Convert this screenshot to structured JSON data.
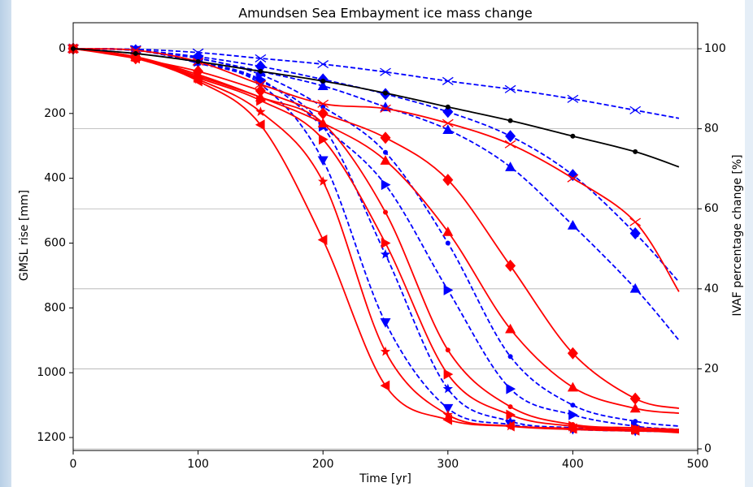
{
  "chart_data": {
    "type": "line",
    "title": "Amundsen Sea Embayment ice mass change",
    "x_label": "Time [yr]",
    "y_label": "GMSL rise [mm]",
    "y2_label": "IVAF percentage change [%]",
    "x": [
      0,
      50,
      100,
      150,
      200,
      250,
      300,
      350,
      400,
      450,
      485
    ],
    "xlim": [
      0,
      500
    ],
    "xticks": [
      0,
      100,
      200,
      300,
      400,
      500
    ],
    "ylim": [
      -80,
      1240
    ],
    "y_inverted": true,
    "yticks": [
      0,
      200,
      400,
      600,
      800,
      1000,
      1200
    ],
    "y2lim": [
      -0.4,
      106.5
    ],
    "y2ticks": [
      0,
      20,
      40,
      60,
      80,
      100
    ],
    "grid": "y2",
    "series": [
      {
        "color": "#000000",
        "linestyle": "solid",
        "marker": "o",
        "values": [
          0,
          15,
          40,
          70,
          100,
          137,
          180,
          222,
          270,
          318,
          365
        ]
      },
      {
        "color": "#0000ff",
        "linestyle": "dashed",
        "marker": "x",
        "values": [
          0,
          2,
          12,
          30,
          48,
          72,
          100,
          125,
          155,
          190,
          215
        ]
      },
      {
        "color": "#0000ff",
        "linestyle": "dashed",
        "marker": "D",
        "values": [
          0,
          5,
          25,
          55,
          95,
          140,
          195,
          270,
          390,
          570,
          720
        ]
      },
      {
        "color": "#0000ff",
        "linestyle": "dashed",
        "marker": "^",
        "values": [
          0,
          5,
          30,
          70,
          115,
          180,
          250,
          365,
          545,
          740,
          900
        ]
      },
      {
        "color": "#0000ff",
        "linestyle": "dashed",
        "marker": "o",
        "values": [
          0,
          5,
          30,
          80,
          180,
          320,
          600,
          950,
          1100,
          1150,
          1165
        ]
      },
      {
        "color": "#0000ff",
        "linestyle": "dashed",
        "marker": ">",
        "values": [
          0,
          5,
          40,
          95,
          240,
          420,
          745,
          1050,
          1130,
          1165,
          1175
        ]
      },
      {
        "color": "#0000ff",
        "linestyle": "dashed",
        "marker": "*",
        "values": [
          0,
          5,
          40,
          100,
          240,
          635,
          1050,
          1150,
          1170,
          1178,
          1180
        ]
      },
      {
        "color": "#0000ff",
        "linestyle": "dashed",
        "marker": "v",
        "values": [
          0,
          5,
          45,
          110,
          345,
          845,
          1110,
          1160,
          1175,
          1180,
          1182
        ]
      },
      {
        "color": "#ff0000",
        "linestyle": "solid",
        "marker": "x",
        "values": [
          0,
          5,
          40,
          110,
          170,
          185,
          230,
          295,
          400,
          535,
          750
        ]
      },
      {
        "color": "#ff0000",
        "linestyle": "solid",
        "marker": "D",
        "values": [
          0,
          30,
          70,
          130,
          200,
          275,
          405,
          670,
          940,
          1080,
          1110
        ]
      },
      {
        "color": "#ff0000",
        "linestyle": "solid",
        "marker": "^",
        "values": [
          0,
          25,
          80,
          150,
          230,
          345,
          565,
          865,
          1045,
          1110,
          1125
        ]
      },
      {
        "color": "#ff0000",
        "linestyle": "solid",
        "marker": "o",
        "values": [
          0,
          25,
          85,
          150,
          230,
          505,
          930,
          1105,
          1160,
          1170,
          1175
        ]
      },
      {
        "color": "#ff0000",
        "linestyle": "solid",
        "marker": ">",
        "values": [
          0,
          25,
          90,
          160,
          280,
          600,
          1005,
          1130,
          1165,
          1175,
          1178
        ]
      },
      {
        "color": "#ff0000",
        "linestyle": "solid",
        "marker": "*",
        "values": [
          0,
          28,
          95,
          195,
          410,
          935,
          1130,
          1165,
          1175,
          1180,
          1182
        ]
      },
      {
        "color": "#ff0000",
        "linestyle": "solid",
        "marker": "<",
        "values": [
          0,
          30,
          100,
          235,
          590,
          1040,
          1145,
          1165,
          1172,
          1178,
          1185
        ]
      }
    ]
  }
}
